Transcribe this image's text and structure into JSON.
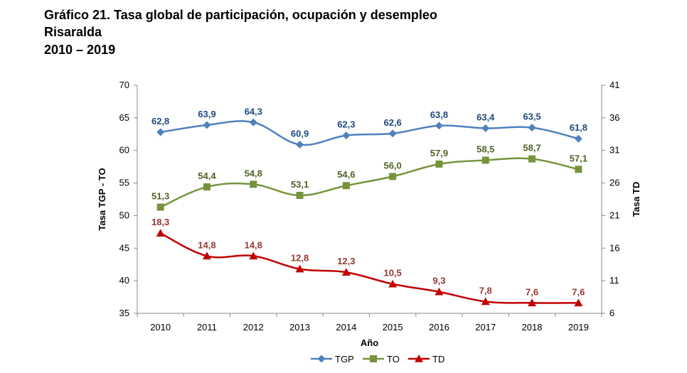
{
  "titles": {
    "line1": "Gráfico 21. Tasa global de participación, ocupación y desempleo",
    "line2": "Risaralda",
    "line3": "2010 – 2019"
  },
  "chart_data": {
    "type": "line",
    "categories": [
      "2010",
      "2011",
      "2012",
      "2013",
      "2014",
      "2015",
      "2016",
      "2017",
      "2018",
      "2019"
    ],
    "xlabel": "Año",
    "ylabel_left": "Tasa TGP - TO",
    "ylabel_right": "Tasa TD",
    "ylim_left": [
      35,
      70
    ],
    "yticks_left": [
      35,
      40,
      45,
      50,
      55,
      60,
      65,
      70
    ],
    "ylim_right": [
      6,
      41
    ],
    "yticks_right": [
      6,
      11,
      16,
      21,
      26,
      31,
      36,
      41
    ],
    "grid": false,
    "legend_position": "bottom",
    "series": [
      {
        "name": "TGP",
        "axis": "left",
        "marker": "diamond",
        "color": "#4F81BD",
        "label_color": "#1F497D",
        "values": [
          62.8,
          63.9,
          64.3,
          60.9,
          62.3,
          62.6,
          63.8,
          63.4,
          63.5,
          61.8
        ],
        "labels": [
          "62,8",
          "63,9",
          "64,3",
          "60,9",
          "62,3",
          "62,6",
          "63,8",
          "63,4",
          "63,5",
          "61,8"
        ]
      },
      {
        "name": "TO",
        "axis": "left",
        "marker": "square",
        "color": "#77933C",
        "label_color": "#4F6228",
        "values": [
          51.3,
          54.4,
          54.8,
          53.1,
          54.6,
          56.0,
          57.9,
          58.5,
          58.7,
          57.1
        ],
        "labels": [
          "51,3",
          "54,4",
          "54,8",
          "53,1",
          "54,6",
          "56,0",
          "57,9",
          "58,5",
          "58,7",
          "57,1"
        ]
      },
      {
        "name": "TD",
        "axis": "right",
        "marker": "triangle",
        "color": "#C00000",
        "label_color": "#953735",
        "values": [
          18.3,
          14.8,
          14.8,
          12.8,
          12.3,
          10.5,
          9.3,
          7.8,
          7.6,
          7.6
        ],
        "labels": [
          "18,3",
          "14,8",
          "14,8",
          "12,8",
          "12,3",
          "10,5",
          "9,3",
          "7,8",
          "7,6",
          "7,6"
        ]
      }
    ]
  }
}
